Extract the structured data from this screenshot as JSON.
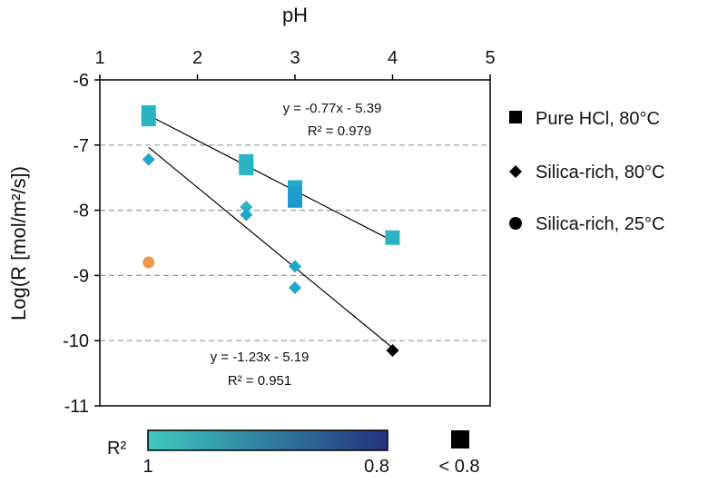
{
  "chart_data": {
    "type": "scatter",
    "xlabel": "pH",
    "ylabel": "Log(R [mol/m²/s])",
    "xlim": [
      1,
      5
    ],
    "ylim": [
      -11,
      -6
    ],
    "xticks": [
      "1",
      "2",
      "3",
      "4",
      "5"
    ],
    "yticks": [
      "-6",
      "-7",
      "-8",
      "-9",
      "-10",
      "-11"
    ],
    "grid": "horizontal dashed lines at -7, -8, -9, -10",
    "x_axis_position": "top",
    "series": [
      {
        "name": "Pure HCl, 80°C",
        "marker": "square",
        "points": [
          {
            "x": 1.5,
            "y": -6.5,
            "color": "#2ab4c2"
          },
          {
            "x": 1.5,
            "y": -6.6,
            "color": "#2ab4c2"
          },
          {
            "x": 2.5,
            "y": -7.25,
            "color": "#2ab4c2"
          },
          {
            "x": 2.5,
            "y": -7.35,
            "color": "#2ab4c2"
          },
          {
            "x": 3.0,
            "y": -7.65,
            "color": "#24a9c5"
          },
          {
            "x": 3.0,
            "y": -7.75,
            "color": "#1f9fca"
          },
          {
            "x": 3.0,
            "y": -7.85,
            "color": "#1e9bcd"
          },
          {
            "x": 4.0,
            "y": -8.42,
            "color": "#2ab4c2"
          }
        ]
      },
      {
        "name": "Silica-rich, 80°C",
        "marker": "diamond",
        "points": [
          {
            "x": 1.5,
            "y": -7.22,
            "color": "#1fa8c9"
          },
          {
            "x": 2.5,
            "y": -7.95,
            "color": "#2ab4c2"
          },
          {
            "x": 2.5,
            "y": -8.07,
            "color": "#1fa8c9"
          },
          {
            "x": 3.0,
            "y": -8.86,
            "color": "#1fa8c9"
          },
          {
            "x": 3.0,
            "y": -9.19,
            "color": "#1fa8c9"
          },
          {
            "x": 4.0,
            "y": -10.15,
            "color": "#000000"
          }
        ]
      },
      {
        "name": "Silica-rich, 25°C",
        "marker": "circle",
        "points": [
          {
            "x": 1.5,
            "y": -8.8,
            "color": "#f0974a"
          }
        ]
      }
    ],
    "trendlines": [
      {
        "slope": -0.77,
        "intercept": -5.39,
        "x_range": [
          1.5,
          4.0
        ],
        "equation": "y = -0.77x - 5.39",
        "r2": "R² = 0.979"
      },
      {
        "slope": -1.23,
        "intercept": -5.19,
        "x_range": [
          1.5,
          4.0
        ],
        "equation": "y = -1.23x - 5.19",
        "r2": "R² = 0.951"
      }
    ],
    "legend": {
      "placement": "right",
      "entries": [
        "Pure HCl, 80°C",
        "Silica-rich, 80°C",
        "Silica-rich, 25°C"
      ]
    },
    "colorbar": {
      "title": "R²",
      "min_label": "1",
      "max_label": "0.8",
      "color_start": "#3ec9bf",
      "color_end": "#23337f",
      "out_of_range_label": "< 0.8",
      "out_of_range_color": "#000000"
    },
    "marker_edge_color": "#000000",
    "trendline_color": "#000000"
  }
}
